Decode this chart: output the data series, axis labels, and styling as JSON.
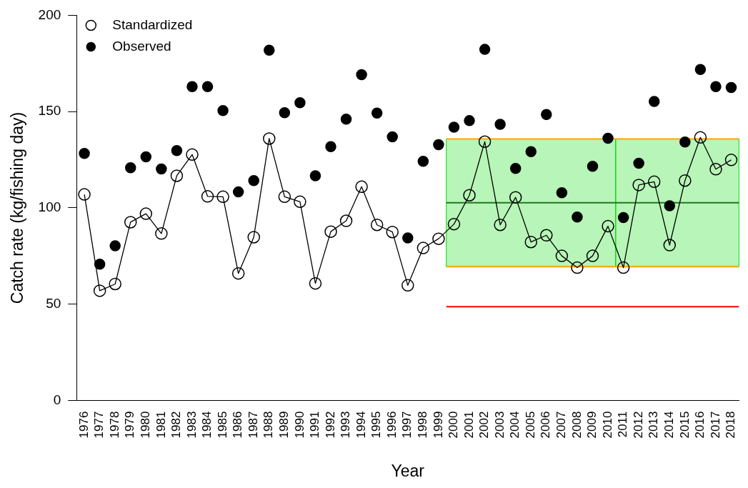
{
  "chart_data": {
    "type": "line",
    "xlabel": "Year",
    "ylabel": "Catch rate (kg/fishing day)",
    "categories": [
      "1976",
      "1977",
      "1978",
      "1979",
      "1980",
      "1981",
      "1982",
      "1983",
      "1984",
      "1985",
      "1986",
      "1987",
      "1988",
      "1989",
      "1990",
      "1991",
      "1992",
      "1993",
      "1994",
      "1995",
      "1996",
      "1997",
      "1998",
      "1999",
      "2000",
      "2001",
      "2002",
      "2003",
      "2004",
      "2005",
      "2006",
      "2007",
      "2008",
      "2009",
      "2010",
      "2011",
      "2012",
      "2013",
      "2014",
      "2015",
      "2016",
      "2017",
      "2018"
    ],
    "series": [
      {
        "name": "Standardized",
        "type": "line",
        "marker": "circle",
        "color": "#000000",
        "values": [
          107,
          57,
          60.5,
          92.6,
          97,
          86.7,
          116.7,
          127.7,
          106,
          105.8,
          66,
          84.8,
          136,
          105.8,
          103.2,
          60.8,
          87.7,
          93.3,
          111,
          91.2,
          87.5,
          59.8,
          79.2,
          84,
          91.6,
          106.6,
          134.4,
          91.2,
          105.5,
          82.3,
          85.8,
          75.1,
          69,
          75.1,
          90.5,
          69,
          111.9,
          113.6,
          80.7,
          114.2,
          136.6,
          120.1,
          124.9
        ]
      },
      {
        "name": "Observed",
        "type": "scatter",
        "marker": "circle",
        "color": "#000000",
        "values": [
          128.3,
          70.8,
          80.3,
          120.9,
          126.5,
          120.2,
          129.8,
          163,
          163,
          150.5,
          108.3,
          114.2,
          181.9,
          149.4,
          154.6,
          116.7,
          131.8,
          146.1,
          169.2,
          149.2,
          136.9,
          84.4,
          124.2,
          132.8,
          141.9,
          145.3,
          182.3,
          143.4,
          120.5,
          129.2,
          148.5,
          107.9,
          95.3,
          121.6,
          136.2,
          95,
          123.2,
          155.3,
          101.1,
          134.2,
          171.9,
          163,
          162.5
        ]
      }
    ],
    "bands": [
      {
        "axis": "x",
        "from": "2000",
        "to": "2010",
        "color": "#00dd00"
      },
      {
        "axis": "x",
        "from": "2011",
        "to": "2018",
        "color": "#00dd00"
      },
      {
        "axis": "y",
        "from": 69.5,
        "to": 135.8,
        "color": "#00dd00"
      }
    ],
    "ref_lines": [
      {
        "axis": "y",
        "value": 135.8,
        "color": "#ffa500"
      },
      {
        "axis": "y",
        "value": 69.5,
        "color": "#ffa500"
      },
      {
        "axis": "y",
        "value": 102.7,
        "color": "#1e7a1e"
      },
      {
        "axis": "y",
        "value": 48.7,
        "color": "#ff0000"
      }
    ],
    "ylim": [
      0,
      200
    ],
    "yticks": [
      0,
      50,
      100,
      150,
      200
    ],
    "grid": false,
    "legend": "top left"
  }
}
